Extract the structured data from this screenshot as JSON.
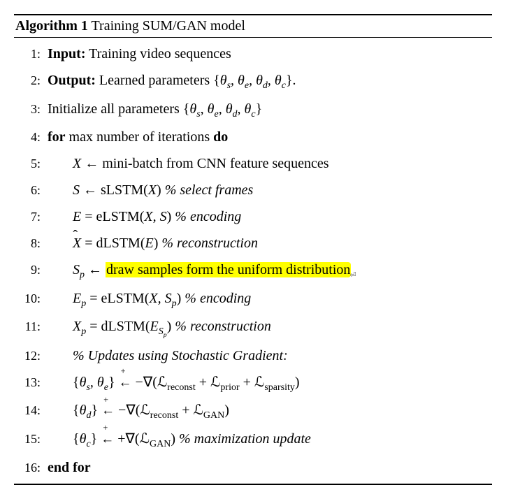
{
  "algorithm": {
    "label": "Algorithm 1",
    "title": "Training SUM/GAN model",
    "title_fontsize": 20,
    "lineno_fontsize": 18,
    "text_color": "#000000",
    "background_color": "#ffffff",
    "highlight_color": "#ffff00",
    "rule_color": "#000000",
    "lines": {
      "l1_kw": "Input:",
      "l1_text": " Training video sequences",
      "l2_kw": "Output:",
      "l2_text_a": " Learned parameters {",
      "l2_text_b": "}.",
      "l3_text_a": "Initialize all parameters {",
      "l3_text_b": "}",
      "l4_for": "for",
      "l4_mid": " max number of iterations ",
      "l4_do": "do",
      "l5_lhs": "X",
      "l5_arrow": " ← ",
      "l5_rhs": "mini-batch from CNN feature sequences",
      "l6_lhs": "S",
      "l6_arrow": " ← ",
      "l6_rhs_a": "sLSTM(",
      "l6_rhs_b": ") ",
      "l6_comment": "% select frames",
      "l7_lhs": "E",
      "l7_eq": " = ",
      "l7_rhs_a": "eLSTM(",
      "l7_rhs_b": ") ",
      "l7_comment": "% encoding",
      "l8_lhs": "X",
      "l8_eq": " = ",
      "l8_rhs_a": "dLSTM(",
      "l8_rhs_b": ") ",
      "l8_comment": "% reconstruction",
      "l9_lhs_a": "S",
      "l9_lhs_b": "p",
      "l9_arrow": " ← ",
      "l9_hl": "draw samples form the uniform distribution",
      "l10_lhs_a": "E",
      "l10_lhs_b": "p",
      "l10_eq": " = ",
      "l10_rhs_a": "eLSTM(",
      "l10_rhs_b": ") ",
      "l10_comment": "% encoding",
      "l11_lhs_a": "X",
      "l11_lhs_b": "p",
      "l11_eq": " = ",
      "l11_rhs_a": "dLSTM(",
      "l11_rhs_b": ") ",
      "l11_comment": "% reconstruction",
      "l12_comment": "% Updates using Stochastic Gradient:",
      "l13_lhs_a": "{",
      "l13_lhs_b": "} ",
      "l13_rhs_a": " −∇(",
      "l13_rhs_b": ")",
      "l14_lhs_a": "{",
      "l14_lhs_b": "} ",
      "l14_rhs_a": " −∇(",
      "l14_rhs_b": ")",
      "l15_lhs_a": "{",
      "l15_lhs_b": "} ",
      "l15_rhs_a": " +∇(",
      "l15_rhs_b": ") ",
      "l15_comment": "% maximization update",
      "l16_kw": "end for",
      "params": {
        "theta_s": "θ",
        "theta_s_sub": "s",
        "theta_e": "θ",
        "theta_e_sub": "e",
        "theta_d": "θ",
        "theta_d_sub": "d",
        "theta_c": "θ",
        "theta_c_sub": "c",
        "sep": ", "
      },
      "loss": {
        "L": "ℒ",
        "reconst": "reconst",
        "prior": "prior",
        "sparsity": "sparsity",
        "gan": "GAN",
        "plus": " + "
      },
      "vars": {
        "X": "X",
        "S": "S",
        "E": "E",
        "Sp": "S",
        "Sp_sub": "p",
        "Ep": "E",
        "Ep_sub": "p",
        "Esp": "E",
        "Esp_sub_a": "S",
        "Esp_sub_b": "p",
        "comma": ", "
      },
      "linenos": {
        "n1": "1:",
        "n2": "2:",
        "n3": "3:",
        "n4": "4:",
        "n5": "5:",
        "n6": "6:",
        "n7": "7:",
        "n8": "8:",
        "n9": "9:",
        "n10": "10:",
        "n11": "11:",
        "n12": "12:",
        "n13": "13:",
        "n14": "14:",
        "n15": "15:",
        "n16": "16:"
      },
      "arrow_plus": "←"
    }
  }
}
